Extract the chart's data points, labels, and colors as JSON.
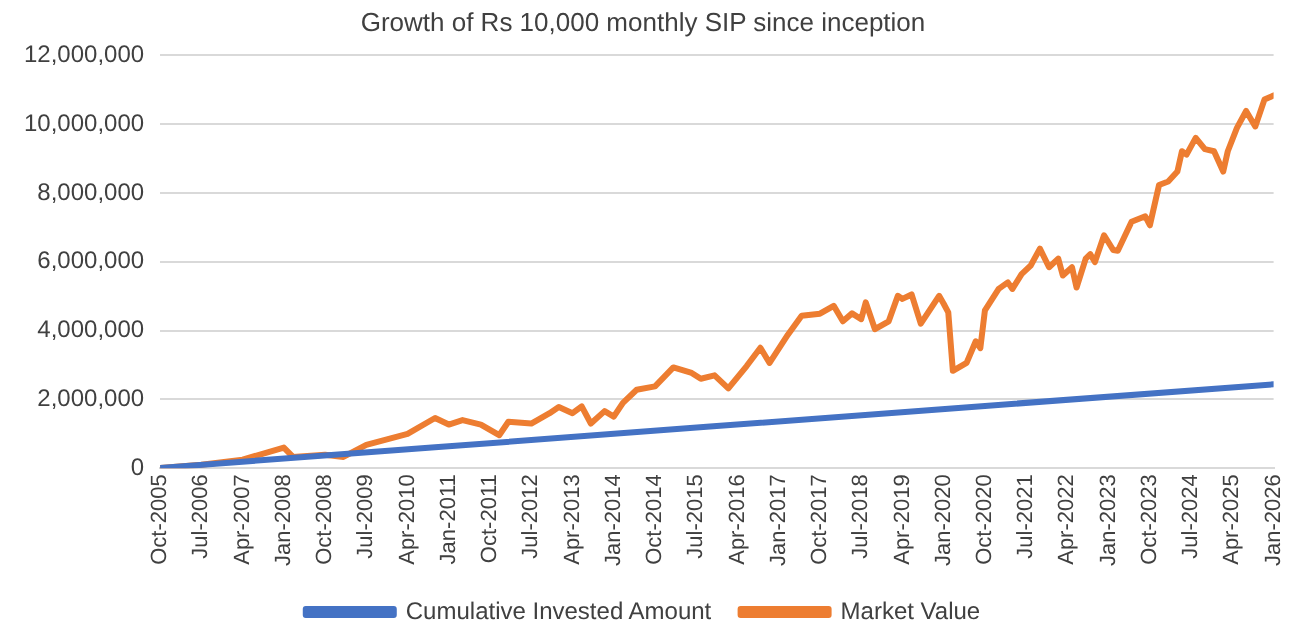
{
  "chart_data": {
    "type": "line",
    "title": "Growth of Rs 10,000 monthly SIP since inception",
    "xlim": [
      "2005-10",
      "2026-01"
    ],
    "xticks": [
      {
        "value": "2005-10",
        "label": "Oct-2005"
      },
      {
        "value": "2006-07",
        "label": "Jul-2006"
      },
      {
        "value": "2007-04",
        "label": "Apr-2007"
      },
      {
        "value": "2008-01",
        "label": "Jan-2008"
      },
      {
        "value": "2008-10",
        "label": "Oct-2008"
      },
      {
        "value": "2009-07",
        "label": "Jul-2009"
      },
      {
        "value": "2010-04",
        "label": "Apr-2010"
      },
      {
        "value": "2011-01",
        "label": "Jan-2011"
      },
      {
        "value": "2011-10",
        "label": "Oct-2011"
      },
      {
        "value": "2012-07",
        "label": "Jul-2012"
      },
      {
        "value": "2013-04",
        "label": "Apr-2013"
      },
      {
        "value": "2014-01",
        "label": "Jan-2014"
      },
      {
        "value": "2014-10",
        "label": "Oct-2014"
      },
      {
        "value": "2015-07",
        "label": "Jul-2015"
      },
      {
        "value": "2016-04",
        "label": "Apr-2016"
      },
      {
        "value": "2017-01",
        "label": "Jan-2017"
      },
      {
        "value": "2017-10",
        "label": "Oct-2017"
      },
      {
        "value": "2018-07",
        "label": "Jul-2018"
      },
      {
        "value": "2019-04",
        "label": "Apr-2019"
      },
      {
        "value": "2020-01",
        "label": "Jan-2020"
      },
      {
        "value": "2020-10",
        "label": "Oct-2020"
      },
      {
        "value": "2021-07",
        "label": "Jul-2021"
      },
      {
        "value": "2022-04",
        "label": "Apr-2022"
      },
      {
        "value": "2023-01",
        "label": "Jan-2023"
      },
      {
        "value": "2023-10",
        "label": "Oct-2023"
      },
      {
        "value": "2024-07",
        "label": "Jul-2024"
      },
      {
        "value": "2025-04",
        "label": "Apr-2025"
      },
      {
        "value": "2026-01",
        "label": "Jan-2026"
      }
    ],
    "ylim": [
      0,
      12000000
    ],
    "yticks": [
      {
        "value": 0,
        "label": "0"
      },
      {
        "value": 2000000,
        "label": "2,000,000"
      },
      {
        "value": 4000000,
        "label": "4,000,000"
      },
      {
        "value": 6000000,
        "label": "6,000,000"
      },
      {
        "value": 8000000,
        "label": "8,000,000"
      },
      {
        "value": 10000000,
        "label": "10,000,000"
      },
      {
        "value": 12000000,
        "label": "12,000,000"
      }
    ],
    "grid": "y",
    "legend": "bottom",
    "marker": "none",
    "line_style": "solid",
    "series": [
      {
        "name": "Cumulative Invested Amount",
        "color": "#4472c4",
        "x": [
          "2005-10",
          "2010-10",
          "2015-10",
          "2020-10",
          "2026-01"
        ],
        "values": [
          10000,
          610000,
          1210000,
          1810000,
          2440000
        ]
      },
      {
        "name": "Market Value",
        "color": "#ed7d31",
        "x": [
          "2005-10",
          "2006-07",
          "2007-04",
          "2008-01",
          "2008-03",
          "2008-10",
          "2009-02",
          "2009-07",
          "2010-04",
          "2010-10",
          "2011-01",
          "2011-04",
          "2011-08",
          "2011-12",
          "2012-02",
          "2012-07",
          "2012-11",
          "2013-01",
          "2013-04",
          "2013-06",
          "2013-08",
          "2013-11",
          "2014-01",
          "2014-03",
          "2014-06",
          "2014-10",
          "2015-02",
          "2015-06",
          "2015-08",
          "2015-11",
          "2016-02",
          "2016-06",
          "2016-09",
          "2016-11",
          "2017-03",
          "2017-06",
          "2017-10",
          "2018-01",
          "2018-03",
          "2018-05",
          "2018-07",
          "2018-08",
          "2018-10",
          "2019-01",
          "2019-03",
          "2019-04",
          "2019-06",
          "2019-08",
          "2019-12",
          "2020-01",
          "2020-02",
          "2020-03",
          "2020-06",
          "2020-08",
          "2020-09",
          "2020-10",
          "2021-01",
          "2021-03",
          "2021-04",
          "2021-06",
          "2021-08",
          "2021-10",
          "2021-12",
          "2022-02",
          "2022-03",
          "2022-05",
          "2022-06",
          "2022-08",
          "2022-09",
          "2022-10",
          "2022-12",
          "2023-02",
          "2023-03",
          "2023-06",
          "2023-09",
          "2023-10",
          "2023-12",
          "2024-02",
          "2024-04",
          "2024-05",
          "2024-06",
          "2024-08",
          "2024-10",
          "2024-12",
          "2025-02",
          "2025-03",
          "2025-05",
          "2025-07",
          "2025-09",
          "2025-11",
          "2026-01"
        ],
        "values": [
          10000,
          100000,
          250000,
          600000,
          330000,
          390000,
          330000,
          680000,
          1000000,
          1460000,
          1270000,
          1400000,
          1270000,
          960000,
          1350000,
          1300000,
          1600000,
          1780000,
          1600000,
          1800000,
          1300000,
          1660000,
          1500000,
          1900000,
          2280000,
          2380000,
          2930000,
          2770000,
          2600000,
          2700000,
          2320000,
          2970000,
          3500000,
          3060000,
          3880000,
          4430000,
          4490000,
          4720000,
          4270000,
          4500000,
          4330000,
          4820000,
          4040000,
          4270000,
          5010000,
          4920000,
          5050000,
          4200000,
          5010000,
          4780000,
          4530000,
          2830000,
          3060000,
          3690000,
          3490000,
          4590000,
          5210000,
          5400000,
          5210000,
          5640000,
          5890000,
          6380000,
          5840000,
          6090000,
          5600000,
          5840000,
          5250000,
          6090000,
          6220000,
          5990000,
          6770000,
          6340000,
          6320000,
          7160000,
          7320000,
          7060000,
          8230000,
          8330000,
          8620000,
          9210000,
          9110000,
          9600000,
          9270000,
          9210000,
          8620000,
          9210000,
          9890000,
          10380000,
          9930000,
          10710000,
          10830000
        ]
      }
    ]
  }
}
